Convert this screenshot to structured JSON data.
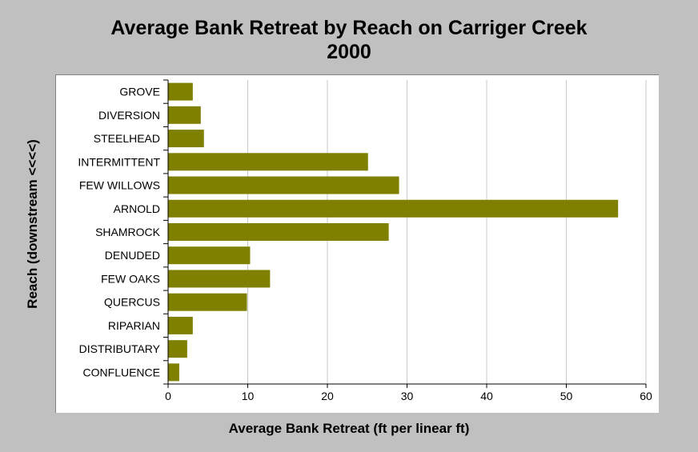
{
  "chart_data": {
    "type": "bar",
    "orientation": "horizontal",
    "title": "Average Bank Retreat by Reach on Carriger Creek",
    "subtitle": "2000",
    "xlabel": "Average Bank Retreat (ft per linear ft)",
    "ylabel": "Reach (downstream <<<<)",
    "xlim": [
      0,
      60
    ],
    "xticks": [
      "0",
      "10",
      "20",
      "30",
      "40",
      "50",
      "60"
    ],
    "grid": "vertical",
    "bar_color": "#808000",
    "categories": [
      "GROVE",
      "DIVERSION",
      "STEELHEAD",
      "INTERMITTENT",
      "FEW WILLOWS",
      "ARNOLD",
      "SHAMROCK",
      "DENUDED",
      "FEW OAKS",
      "QUERCUS",
      "RIPARIAN",
      "DISTRIBUTARY",
      "CONFLUENCE"
    ],
    "values": [
      3.1,
      4.1,
      4.5,
      25.1,
      29.0,
      56.5,
      27.7,
      10.3,
      12.8,
      9.9,
      3.1,
      2.4,
      1.4
    ]
  }
}
